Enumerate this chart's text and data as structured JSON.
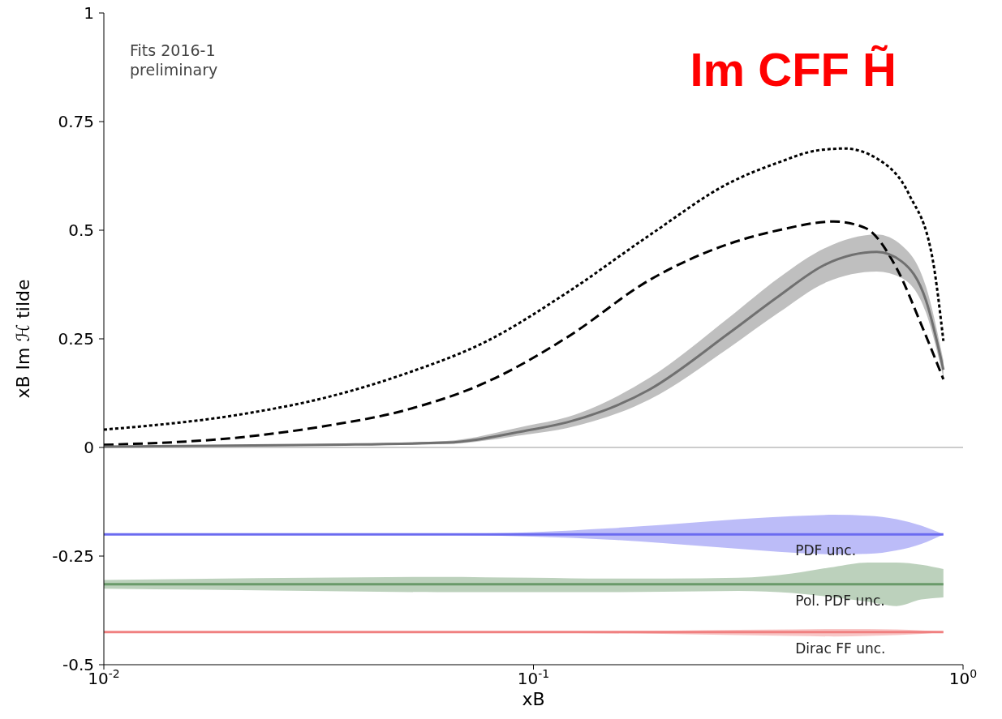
{
  "chart_data": {
    "type": "line",
    "title": "Im CFF H̃",
    "xlabel": "xB",
    "ylabel": "xB Im ℋ tilde",
    "log": "x",
    "xlim": [
      0.01,
      1
    ],
    "xticks": [
      {
        "value": 0.01,
        "label": "10$^{-2}$"
      },
      {
        "value": 0.1,
        "label": "10$^{-1}$"
      },
      {
        "value": 1,
        "label": "10$^{0}$"
      }
    ],
    "ylim": [
      -0.5,
      1
    ],
    "yticks": [
      -0.5,
      -0.25,
      0,
      0.25,
      0.5,
      0.75,
      1
    ],
    "grid": false,
    "marker": "none",
    "ref_lines": [
      {
        "axis": "y",
        "value": 0,
        "color": "#cccccc"
      }
    ],
    "annotations": [
      "Fits 2016-1\npreliminary"
    ],
    "series": [
      {
        "color": "#000000",
        "line_style": "dotted",
        "x": [
          0.01,
          0.0211,
          0.0326,
          0.0504,
          0.078,
          0.12,
          0.186,
          0.286,
          0.372,
          0.46,
          0.53,
          0.63,
          0.75,
          0.85,
          0.9
        ],
        "values": [
          0.041,
          0.077,
          0.114,
          0.17,
          0.245,
          0.357,
          0.488,
          0.609,
          0.656,
          0.684,
          0.688,
          0.665,
          0.581,
          0.432,
          0.245
        ]
      },
      {
        "color": "#000000",
        "line_style": "dashed",
        "x": [
          0.01,
          0.0211,
          0.0326,
          0.0504,
          0.078,
          0.12,
          0.186,
          0.286,
          0.372,
          0.5,
          0.59,
          0.7,
          0.8,
          0.9
        ],
        "values": [
          0.006,
          0.024,
          0.049,
          0.086,
          0.151,
          0.254,
          0.385,
          0.469,
          0.5,
          0.52,
          0.506,
          0.413,
          0.282,
          0.157
        ]
      },
      {
        "color": "#707070",
        "line_style": "solid",
        "x": [
          0.01,
          0.0326,
          0.0626,
          0.0966,
          0.12,
          0.186,
          0.286,
          0.372,
          0.48,
          0.63,
          0.72,
          0.82,
          0.9
        ],
        "values": [
          0.002,
          0.006,
          0.011,
          0.039,
          0.058,
          0.133,
          0.264,
          0.348,
          0.422,
          0.45,
          0.428,
          0.338,
          0.179
        ],
        "lower": [
          0.001,
          0.004,
          0.008,
          0.03,
          0.045,
          0.11,
          0.23,
          0.31,
          0.38,
          0.405,
          0.39,
          0.31,
          0.16
        ],
        "upper": [
          0.003,
          0.008,
          0.015,
          0.05,
          0.07,
          0.16,
          0.3,
          0.39,
          0.46,
          0.49,
          0.465,
          0.37,
          0.2
        ]
      },
      {
        "name": "PDF unc.",
        "color": "#6b6bf0",
        "line_style": "solid",
        "x": [
          0.01,
          0.03,
          0.06,
          0.1,
          0.15,
          0.2,
          0.3,
          0.4,
          0.5,
          0.6,
          0.7,
          0.8,
          0.9
        ],
        "values": [
          -0.2,
          -0.2,
          -0.2,
          -0.2,
          -0.2,
          -0.2,
          -0.2,
          -0.2,
          -0.2,
          -0.2,
          -0.2,
          -0.2,
          -0.2
        ],
        "lower": [
          -0.2,
          -0.2,
          -0.201,
          -0.205,
          -0.212,
          -0.22,
          -0.233,
          -0.242,
          -0.246,
          -0.245,
          -0.237,
          -0.222,
          -0.2
        ],
        "upper": [
          -0.2,
          -0.2,
          -0.199,
          -0.195,
          -0.186,
          -0.178,
          -0.165,
          -0.158,
          -0.155,
          -0.157,
          -0.165,
          -0.18,
          -0.2
        ]
      },
      {
        "name": "Pol. PDF unc.",
        "color": "#6a9a6a",
        "line_style": "solid",
        "x": [
          0.01,
          0.03,
          0.06,
          0.1,
          0.15,
          0.2,
          0.3,
          0.4,
          0.5,
          0.6,
          0.7,
          0.8,
          0.9
        ],
        "values": [
          -0.315,
          -0.315,
          -0.315,
          -0.315,
          -0.315,
          -0.315,
          -0.315,
          -0.315,
          -0.315,
          -0.315,
          -0.315,
          -0.315,
          -0.315
        ],
        "lower": [
          -0.325,
          -0.33,
          -0.333,
          -0.333,
          -0.333,
          -0.332,
          -0.33,
          -0.335,
          -0.345,
          -0.355,
          -0.365,
          -0.35,
          -0.345
        ],
        "upper": [
          -0.305,
          -0.3,
          -0.298,
          -0.3,
          -0.302,
          -0.302,
          -0.3,
          -0.29,
          -0.275,
          -0.265,
          -0.265,
          -0.27,
          -0.28
        ]
      },
      {
        "name": "Dirac FF unc.",
        "color": "#f08080",
        "line_style": "solid",
        "x": [
          0.01,
          0.1,
          0.2,
          0.3,
          0.4,
          0.5,
          0.6,
          0.7,
          0.8,
          0.9
        ],
        "values": [
          -0.425,
          -0.425,
          -0.425,
          -0.425,
          -0.425,
          -0.425,
          -0.425,
          -0.425,
          -0.425,
          -0.425
        ],
        "lower": [
          -0.426,
          -0.427,
          -0.429,
          -0.432,
          -0.434,
          -0.435,
          -0.434,
          -0.432,
          -0.429,
          -0.426
        ],
        "upper": [
          -0.424,
          -0.423,
          -0.422,
          -0.42,
          -0.419,
          -0.418,
          -0.418,
          -0.419,
          -0.421,
          -0.424
        ]
      }
    ]
  }
}
